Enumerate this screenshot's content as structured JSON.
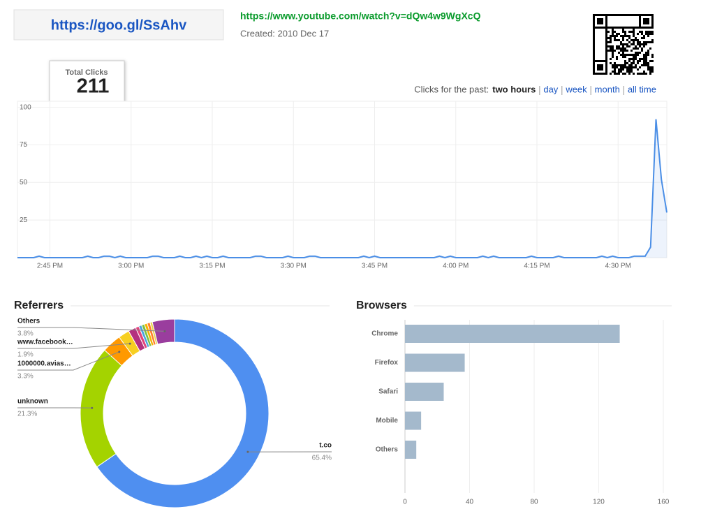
{
  "header": {
    "short_url": "https://goo.gl/SsAhv",
    "long_url": "https://www.youtube.com/watch?v=dQw4w9WgXcQ",
    "created": "Created: 2010 Dec 17"
  },
  "total_clicks": {
    "label": "Total Clicks",
    "value": 211
  },
  "period": {
    "label": "Clicks for the past:",
    "options": [
      "two hours",
      "day",
      "week",
      "month",
      "all time"
    ],
    "selected": 0
  },
  "chart_data": [
    {
      "type": "line",
      "color": "#4a8ee6",
      "values": [
        0,
        0,
        0,
        0,
        1,
        0,
        0,
        0,
        0,
        0,
        0,
        0,
        0,
        1,
        0,
        0,
        1,
        1,
        0,
        1,
        0,
        0,
        0,
        0,
        0,
        1,
        1,
        0,
        0,
        0,
        1,
        0,
        0,
        1,
        0,
        1,
        0,
        0,
        1,
        0,
        0,
        0,
        0,
        0,
        1,
        1,
        0,
        0,
        0,
        0,
        1,
        0,
        0,
        0,
        1,
        1,
        0,
        0,
        0,
        0,
        0,
        0,
        0,
        0,
        1,
        0,
        1,
        0,
        0,
        0,
        0,
        0,
        0,
        0,
        0,
        0,
        0,
        0,
        1,
        0,
        1,
        0,
        0,
        0,
        0,
        0,
        1,
        0,
        1,
        0,
        0,
        0,
        0,
        0,
        0,
        1,
        0,
        0,
        0,
        0,
        1,
        0,
        0,
        0,
        0,
        0,
        0,
        0,
        1,
        0,
        1,
        0,
        0,
        0,
        1,
        1,
        1,
        7,
        92,
        52,
        30
      ],
      "xlim": [
        0,
        120
      ],
      "xticks": [
        {
          "value": 6,
          "label": "2:45 PM"
        },
        {
          "value": 21,
          "label": "3:00 PM"
        },
        {
          "value": 36,
          "label": "3:15 PM"
        },
        {
          "value": 51,
          "label": "3:30 PM"
        },
        {
          "value": 66,
          "label": "3:45 PM"
        },
        {
          "value": 81,
          "label": "4:00 PM"
        },
        {
          "value": 96,
          "label": "4:15 PM"
        },
        {
          "value": 111,
          "label": "4:30 PM"
        }
      ],
      "ylim": [
        0,
        104
      ],
      "yticks": [
        25,
        50,
        75,
        100
      ],
      "grid": true
    },
    {
      "type": "pie",
      "title": "Referrers",
      "donut": true,
      "categories": [
        "t.co",
        "unknown",
        "1000000.avias…",
        "www.facebook…",
        null,
        null,
        null,
        null,
        null,
        null,
        null,
        "Others"
      ],
      "values": [
        65.4,
        21.3,
        3.3,
        1.9,
        1.3,
        0.6,
        0.5,
        0.5,
        0.5,
        0.5,
        0.4,
        3.8
      ],
      "value_labels": [
        "65.4%",
        "21.3%",
        "3.3%",
        "1.9%",
        null,
        null,
        null,
        null,
        null,
        null,
        null,
        "3.8%"
      ],
      "colors": [
        "#4f8ff0",
        "#a4d300",
        "#ff9900",
        "#f7cf21",
        "#b4327f",
        "#e0457b",
        "#4aa3df",
        "#7bc043",
        "#f4b400",
        "#ff7f2a",
        "#e8d44d",
        "#9a3d9e"
      ]
    },
    {
      "type": "bar",
      "title": "Browsers",
      "orientation": "horizontal",
      "color": "#a4b9cc",
      "categories": [
        "Chrome",
        "Firefox",
        "Safari",
        "Mobile",
        "Others"
      ],
      "values": [
        133,
        37,
        24,
        10,
        7
      ],
      "xlim": [
        0,
        160
      ],
      "xticks": [
        0,
        40,
        80,
        120,
        160
      ],
      "grid": true
    }
  ]
}
